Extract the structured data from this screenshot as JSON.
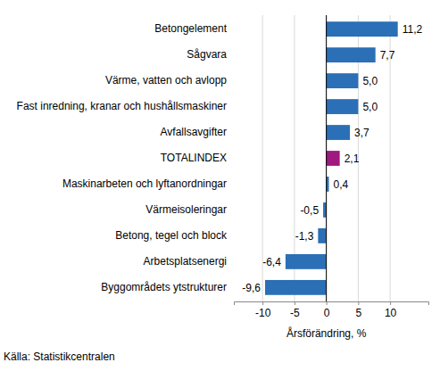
{
  "chart_data": {
    "type": "bar",
    "orientation": "horizontal",
    "categories": [
      "Betongelement",
      "Sågvara",
      "Värme, vatten och avlopp",
      "Fast inredning, kranar och hushållsmaskiner",
      "Avfallsavgifter",
      "TOTALINDEX",
      "Maskinarbeten och lyftanordningar",
      "Värmeisoleringar",
      "Betong, tegel och block",
      "Arbetsplatsenergi",
      "Byggområdets ytstrukturer"
    ],
    "values": [
      11.2,
      7.7,
      5.0,
      5.0,
      3.7,
      2.1,
      0.4,
      -0.5,
      -1.3,
      -6.4,
      -9.6
    ],
    "value_labels": [
      "11,2",
      "7,7",
      "5,0",
      "5,0",
      "3,7",
      "2,1",
      "0,4",
      "-0,5",
      "-1,3",
      "-6,4",
      "-9,6"
    ],
    "colors": [
      "#2b6fb6",
      "#2b6fb6",
      "#2b6fb6",
      "#2b6fb6",
      "#2b6fb6",
      "#a0197f",
      "#2b6fb6",
      "#2b6fb6",
      "#2b6fb6",
      "#2b6fb6",
      "#2b6fb6"
    ],
    "data_labels": true,
    "grid": true,
    "x_label": "Årsförändring, %",
    "annotations": [
      "Källa: Statistikcentralen"
    ],
    "xlim": [
      -14.5,
      16
    ],
    "xticks": [
      -10,
      -5,
      0,
      5,
      10
    ]
  }
}
